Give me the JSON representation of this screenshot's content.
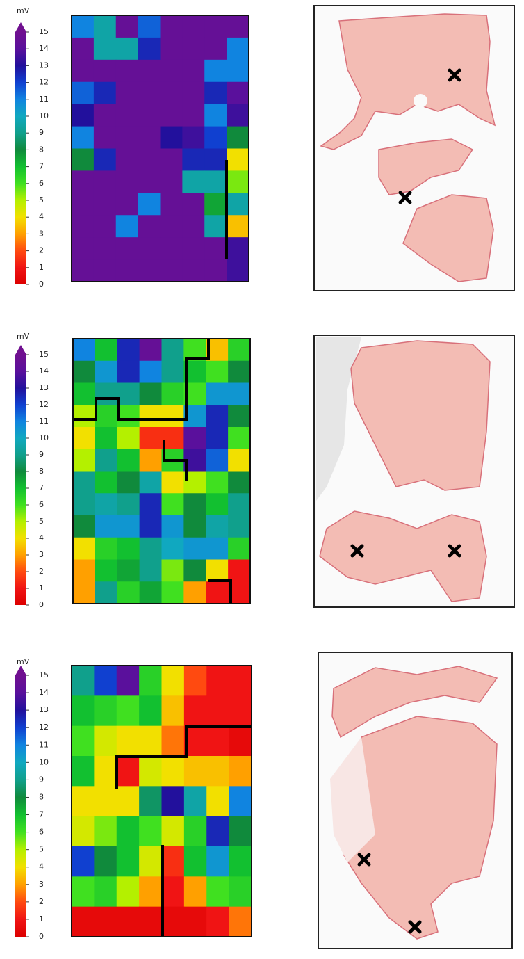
{
  "chart_data": [
    {
      "type": "heatmap",
      "colorbar_label": "mV",
      "zlim": [
        0,
        15
      ],
      "zticks": [
        0,
        1,
        2,
        3,
        4,
        5,
        6,
        7,
        8,
        9,
        10,
        11,
        12,
        13,
        14,
        15
      ],
      "colorscale": [
        "#dc0000",
        "#f01414",
        "#ff4a10",
        "#ffa000",
        "#f2e000",
        "#b4f000",
        "#40e020",
        "#12c030",
        "#108a3c",
        "#10a08c",
        "#10a8c0",
        "#1084e0",
        "#1040d0",
        "#22109c",
        "#5a109c",
        "#701090"
      ],
      "values": [
        [
          11,
          9.5,
          14.5,
          11.5,
          14.5,
          14.5,
          14.5,
          14.5
        ],
        [
          14.5,
          9.5,
          9.5,
          12.5,
          14.5,
          14.5,
          14.5,
          11
        ],
        [
          14.5,
          14.5,
          14.5,
          14.5,
          14.5,
          14.5,
          11,
          11
        ],
        [
          11.5,
          12.5,
          14.5,
          14.5,
          14.5,
          14.5,
          12.5,
          14
        ],
        [
          13,
          14.5,
          14.5,
          14.5,
          14.5,
          14.5,
          11,
          13.5
        ],
        [
          11,
          14.5,
          14.5,
          14.5,
          13,
          13.5,
          12,
          8
        ],
        [
          8,
          12.5,
          14.5,
          14.5,
          14.5,
          12.5,
          12.5,
          4
        ],
        [
          14.5,
          14.5,
          14.5,
          14.5,
          14.5,
          9.5,
          9.5,
          5.5
        ],
        [
          14.5,
          14.5,
          14.5,
          11,
          14.5,
          14.5,
          7.5,
          9.5
        ],
        [
          14.5,
          14.5,
          11,
          14.5,
          14.5,
          14.5,
          9.5,
          3.5
        ],
        [
          14.5,
          14.5,
          14.5,
          14.5,
          14.5,
          14.5,
          14.5,
          13.5
        ],
        [
          14.5,
          14.5,
          14.5,
          14.5,
          14.5,
          14.5,
          14.5,
          13.5
        ]
      ]
    },
    {
      "type": "heatmap",
      "colorbar_label": "mV",
      "zlim": [
        0,
        15
      ],
      "zticks": [
        0,
        1,
        2,
        3,
        4,
        5,
        6,
        7,
        8,
        9,
        10,
        11,
        12,
        13,
        14,
        15
      ],
      "colorscale": [
        "#dc0000",
        "#f01414",
        "#ff4a10",
        "#ffa000",
        "#f2e000",
        "#b4f000",
        "#40e020",
        "#12c030",
        "#108a3c",
        "#10a08c",
        "#10a8c0",
        "#1084e0",
        "#1040d0",
        "#22109c",
        "#5a109c",
        "#701090"
      ],
      "values": [
        [
          11,
          7,
          12.5,
          14.5,
          9,
          6,
          3.5,
          6.5
        ],
        [
          8,
          10.5,
          12.5,
          11,
          9,
          7,
          6,
          8
        ],
        [
          7,
          9,
          9,
          8,
          6.5,
          6,
          10.5,
          10.5
        ],
        [
          5,
          6.5,
          6,
          4,
          4,
          10.5,
          12.5,
          8
        ],
        [
          4,
          7,
          5,
          1.5,
          1.5,
          14,
          12.5,
          6
        ],
        [
          5,
          9,
          7,
          3,
          6.5,
          13.5,
          11.5,
          4
        ],
        [
          9,
          7,
          8,
          9.5,
          4,
          5,
          6,
          8
        ],
        [
          9,
          9.5,
          9,
          12.5,
          6,
          8,
          7,
          9
        ],
        [
          8,
          10.5,
          10.5,
          12.5,
          10.5,
          8,
          9.5,
          9
        ],
        [
          4,
          6.5,
          7,
          9,
          10,
          10.5,
          10.5,
          6.5
        ],
        [
          3,
          7,
          7.5,
          9,
          5.5,
          8,
          4,
          1
        ],
        [
          3,
          9,
          6.5,
          7.5,
          6,
          3,
          1,
          1
        ]
      ]
    },
    {
      "type": "heatmap",
      "colorbar_label": "mV",
      "zlim": [
        0,
        15
      ],
      "zticks": [
        0,
        1,
        2,
        3,
        4,
        5,
        6,
        7,
        8,
        9,
        10,
        11,
        12,
        13,
        14,
        15
      ],
      "colorscale": [
        "#dc0000",
        "#f01414",
        "#ff4a10",
        "#ffa000",
        "#f2e000",
        "#b4f000",
        "#40e020",
        "#12c030",
        "#108a3c",
        "#10a08c",
        "#10a8c0",
        "#1084e0",
        "#1040d0",
        "#22109c",
        "#5a109c",
        "#701090"
      ],
      "values": [
        [
          9,
          12,
          14,
          6.5,
          4,
          2,
          1,
          1
        ],
        [
          7,
          6.5,
          6,
          7,
          3.5,
          1,
          1,
          1
        ],
        [
          6,
          4.5,
          4,
          4,
          2.5,
          1,
          1,
          0.5
        ],
        [
          7,
          4,
          1,
          4.5,
          4,
          3.5,
          3.5,
          3
        ],
        [
          4,
          4,
          4,
          8.5,
          13,
          9.5,
          4,
          11
        ],
        [
          4.5,
          5.5,
          7,
          6,
          4.5,
          6.5,
          12.5,
          8
        ],
        [
          12,
          8,
          7,
          4.5,
          1.5,
          7,
          10.5,
          7
        ],
        [
          6,
          6.5,
          5,
          3,
          1,
          3,
          6,
          6.5
        ],
        [
          0.5,
          0.5,
          0.5,
          0.5,
          0.5,
          0.5,
          1,
          2.5
        ]
      ]
    }
  ]
}
